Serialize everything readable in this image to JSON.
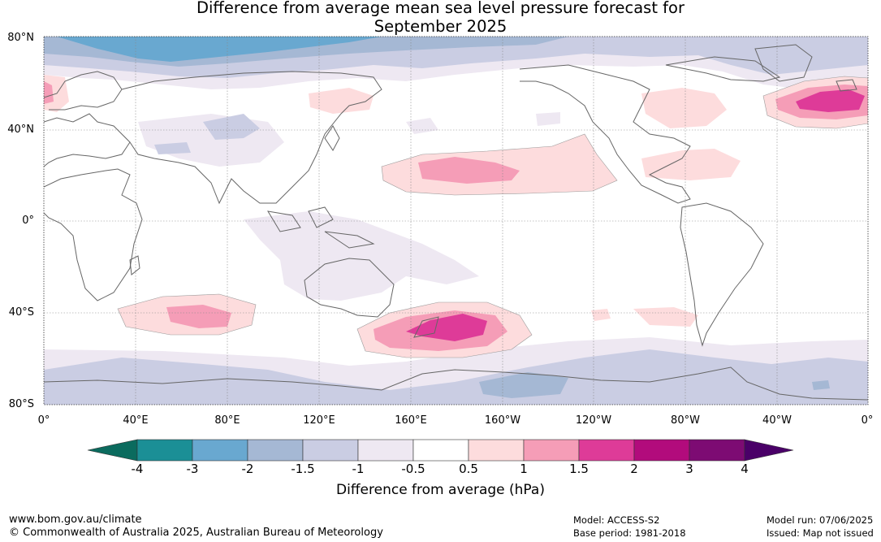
{
  "title_line1": "Difference from average mean sea level pressure forecast for",
  "title_line2": "September 2025",
  "lat_labels": [
    "80°N",
    "40°N",
    "0°",
    "40°S",
    "80°S"
  ],
  "lon_labels": [
    "0°",
    "40°E",
    "80°E",
    "120°E",
    "160°E",
    "160°W",
    "120°W",
    "80°W",
    "40°W",
    "0°"
  ],
  "colorbar": {
    "ticks": [
      "-4",
      "-3",
      "-2",
      "-1.5",
      "-1",
      "-0.5",
      "0.5",
      "1",
      "1.5",
      "2",
      "3",
      "4"
    ],
    "colors": [
      "#1b8f96",
      "#69a8d0",
      "#a5b8d4",
      "#cacde3",
      "#eee8f2",
      "#ffffff",
      "#fddcdd",
      "#f59db7",
      "#de3b98",
      "#b20b7c",
      "#7d0b73"
    ],
    "under_color": "#0b6b5e",
    "over_color": "#4a0068",
    "label": "Difference from average (hPa)"
  },
  "footer": {
    "url": "www.bom.gov.au/climate",
    "copyright": "© Commonwealth of Australia 2025, Australian Bureau of Meteorology",
    "model": "Model: ACCESS-S2",
    "base_period": "Base period: 1981-2018",
    "model_run": "Model run: 07/06/2025",
    "issued": "Issued: Map not issued"
  }
}
